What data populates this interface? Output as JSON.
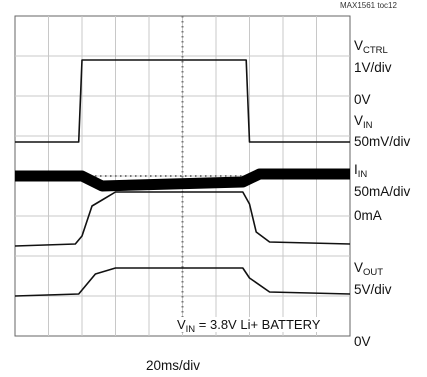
{
  "figure_tag": "MAX1561 toc12",
  "chart_data": {
    "type": "line",
    "subtype": "oscilloscope",
    "grid": true,
    "grid_divisions": {
      "x": 10,
      "y": 8
    },
    "time_per_div": "20ms/div",
    "condition": {
      "main": "V",
      "sub": "IN",
      "rest": " = 3.8V Li+ BATTERY"
    },
    "channels": [
      {
        "label_main": "V",
        "label_sub": "CTRL",
        "scale": "1V/div",
        "ground": "0V",
        "color": "#111111",
        "x": [
          0,
          1.9,
          2.0,
          6.9,
          7.0,
          10
        ],
        "y": [
          4.85,
          4.85,
          6.9,
          6.9,
          4.85,
          4.85
        ]
      },
      {
        "label_main": "V",
        "label_sub": "IN",
        "scale": "50mV/div",
        "ground": "",
        "color": "#000000",
        "x": [
          0,
          2.0,
          2.6,
          6.8,
          7.3,
          10
        ],
        "y": [
          4.0,
          4.0,
          3.75,
          3.85,
          4.05,
          4.05
        ]
      },
      {
        "label_main": "I",
        "label_sub": "IN",
        "scale": "50mA/div",
        "ground": "0mA",
        "color": "#111111",
        "x": [
          0,
          1.8,
          2.0,
          2.3,
          2.6,
          3.0,
          6.8,
          7.0,
          7.2,
          7.6,
          10
        ],
        "y": [
          2.25,
          2.3,
          2.5,
          3.25,
          3.4,
          3.6,
          3.6,
          3.3,
          2.6,
          2.35,
          2.3
        ]
      },
      {
        "label_main": "V",
        "label_sub": "OUT",
        "scale": "5V/div",
        "ground": "0V",
        "color": "#111111",
        "x": [
          0,
          1.9,
          2.4,
          3.0,
          6.8,
          7.0,
          7.6,
          10
        ],
        "y": [
          1.0,
          1.05,
          1.55,
          1.7,
          1.7,
          1.45,
          1.1,
          1.05
        ]
      }
    ]
  }
}
